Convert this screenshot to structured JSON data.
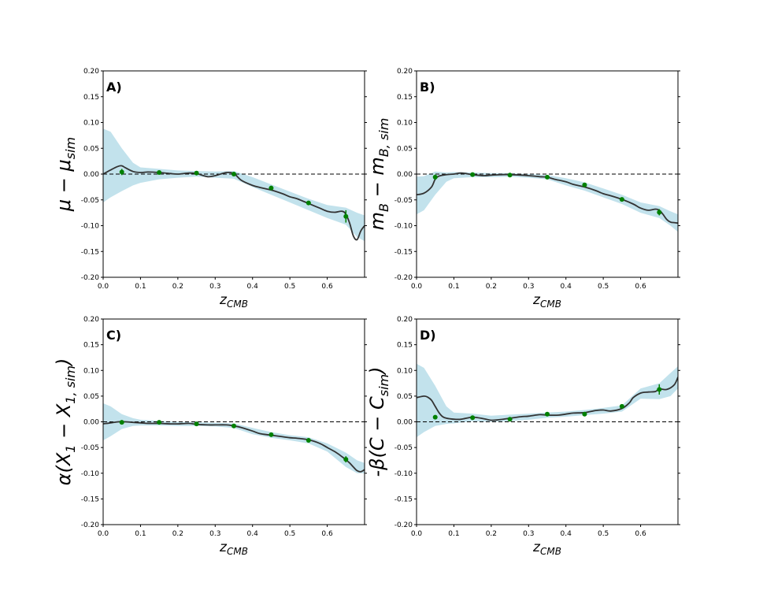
{
  "colors": {
    "band": "#add8e6",
    "curve": "#333333",
    "points": "#008000",
    "zero_line": "#000000"
  },
  "chart_data": [
    {
      "type": "line",
      "panel_label": "A)",
      "ylabel_text": "μ − μ",
      "ylabel_sub": "sim",
      "xlabel_text": "z",
      "xlabel_sub": "CMB",
      "xlim": [
        0.0,
        0.7
      ],
      "ylim": [
        -0.2,
        0.2
      ],
      "xticks": [
        "0.0",
        "0.1",
        "0.2",
        "0.3",
        "0.4",
        "0.5",
        "0.6"
      ],
      "yticks": [
        "0.20",
        "0.15",
        "0.10",
        "0.05",
        "0.00",
        "-0.05",
        "-0.10",
        "-0.15",
        "-0.20"
      ],
      "reference_line_y": 0.0,
      "curve": {
        "x": [
          0.0,
          0.02,
          0.04,
          0.05,
          0.06,
          0.08,
          0.1,
          0.12,
          0.15,
          0.18,
          0.2,
          0.23,
          0.25,
          0.28,
          0.3,
          0.33,
          0.35,
          0.37,
          0.4,
          0.42,
          0.45,
          0.48,
          0.5,
          0.52,
          0.55,
          0.58,
          0.6,
          0.62,
          0.64,
          0.65,
          0.66,
          0.67,
          0.68,
          0.69,
          0.7
        ],
        "y": [
          0.0,
          0.008,
          0.015,
          0.016,
          0.012,
          0.005,
          0.003,
          0.004,
          0.003,
          0.001,
          0.0,
          0.002,
          0.001,
          -0.005,
          -0.003,
          0.003,
          0.001,
          -0.012,
          -0.022,
          -0.026,
          -0.031,
          -0.038,
          -0.044,
          -0.048,
          -0.057,
          -0.066,
          -0.072,
          -0.074,
          -0.072,
          -0.078,
          -0.095,
          -0.12,
          -0.127,
          -0.11,
          -0.1
        ]
      },
      "band": {
        "x": [
          0.0,
          0.02,
          0.05,
          0.08,
          0.1,
          0.15,
          0.2,
          0.25,
          0.3,
          0.35,
          0.4,
          0.45,
          0.5,
          0.55,
          0.6,
          0.65,
          0.68,
          0.7
        ],
        "upper": [
          0.088,
          0.082,
          0.05,
          0.022,
          0.013,
          0.01,
          0.007,
          0.006,
          0.005,
          0.006,
          -0.006,
          -0.02,
          -0.034,
          -0.048,
          -0.06,
          -0.065,
          -0.075,
          -0.08
        ],
        "lower": [
          -0.055,
          -0.045,
          -0.033,
          -0.022,
          -0.017,
          -0.01,
          -0.007,
          -0.005,
          -0.007,
          -0.009,
          -0.025,
          -0.04,
          -0.055,
          -0.07,
          -0.085,
          -0.098,
          -0.122,
          -0.13
        ]
      },
      "points": {
        "x": [
          0.05,
          0.15,
          0.25,
          0.35,
          0.45,
          0.55,
          0.65
        ],
        "y": [
          0.004,
          0.003,
          0.002,
          0.0,
          -0.027,
          -0.056,
          -0.082
        ],
        "yerr": [
          0.006,
          0.002,
          0.002,
          0.002,
          0.002,
          0.004,
          0.012
        ]
      }
    },
    {
      "type": "line",
      "panel_label": "B)",
      "ylabel_text": "m",
      "ylabel_sub": "B",
      "ylabel_text2": " − m",
      "ylabel_sub2": "B, sim",
      "xlabel_text": "z",
      "xlabel_sub": "CMB",
      "xlim": [
        0.0,
        0.7
      ],
      "ylim": [
        -0.2,
        0.2
      ],
      "xticks": [
        "0.0",
        "0.1",
        "0.2",
        "0.3",
        "0.4",
        "0.5",
        "0.6"
      ],
      "yticks": [
        "0.20",
        "0.15",
        "0.10",
        "0.05",
        "0.00",
        "-0.05",
        "-0.10",
        "-0.15",
        "-0.20"
      ],
      "reference_line_y": 0.0,
      "curve": {
        "x": [
          0.0,
          0.02,
          0.04,
          0.05,
          0.06,
          0.08,
          0.1,
          0.12,
          0.15,
          0.18,
          0.2,
          0.23,
          0.25,
          0.28,
          0.3,
          0.33,
          0.35,
          0.37,
          0.4,
          0.42,
          0.45,
          0.48,
          0.5,
          0.52,
          0.55,
          0.58,
          0.6,
          0.62,
          0.64,
          0.65,
          0.66,
          0.67,
          0.68,
          0.69,
          0.7
        ],
        "y": [
          -0.04,
          -0.037,
          -0.025,
          -0.01,
          -0.004,
          -0.001,
          0.0,
          0.002,
          -0.001,
          -0.003,
          -0.002,
          -0.001,
          -0.001,
          -0.002,
          -0.003,
          -0.005,
          -0.006,
          -0.01,
          -0.015,
          -0.02,
          -0.025,
          -0.032,
          -0.038,
          -0.042,
          -0.049,
          -0.058,
          -0.066,
          -0.07,
          -0.068,
          -0.07,
          -0.078,
          -0.088,
          -0.093,
          -0.094,
          -0.095
        ]
      },
      "band": {
        "x": [
          0.0,
          0.02,
          0.05,
          0.08,
          0.1,
          0.15,
          0.2,
          0.25,
          0.3,
          0.35,
          0.4,
          0.45,
          0.5,
          0.55,
          0.6,
          0.65,
          0.68,
          0.7
        ],
        "upper": [
          -0.005,
          -0.004,
          0.005,
          0.003,
          0.004,
          0.003,
          0.002,
          0.002,
          0.0,
          -0.002,
          -0.008,
          -0.016,
          -0.028,
          -0.04,
          -0.055,
          -0.062,
          -0.072,
          -0.078
        ],
        "lower": [
          -0.078,
          -0.07,
          -0.04,
          -0.015,
          -0.008,
          -0.006,
          -0.006,
          -0.005,
          -0.007,
          -0.01,
          -0.022,
          -0.032,
          -0.045,
          -0.058,
          -0.075,
          -0.085,
          -0.1,
          -0.112
        ]
      },
      "points": {
        "x": [
          0.05,
          0.15,
          0.25,
          0.35,
          0.45,
          0.55,
          0.65
        ],
        "y": [
          -0.006,
          -0.001,
          -0.002,
          -0.006,
          -0.021,
          -0.049,
          -0.074
        ],
        "yerr": [
          0.005,
          0.002,
          0.002,
          0.002,
          0.002,
          0.003,
          0.006
        ]
      }
    },
    {
      "type": "line",
      "panel_label": "C)",
      "ylabel_text": "α(X",
      "ylabel_sub": "1",
      "ylabel_text2": " − X",
      "ylabel_sub2": "1, sim",
      "ylabel_text3": ")",
      "xlabel_text": "z",
      "xlabel_sub": "CMB",
      "xlim": [
        0.0,
        0.7
      ],
      "ylim": [
        -0.2,
        0.2
      ],
      "xticks": [
        "0.0",
        "0.1",
        "0.2",
        "0.3",
        "0.4",
        "0.5",
        "0.6"
      ],
      "yticks": [
        "0.20",
        "0.15",
        "0.10",
        "0.05",
        "0.00",
        "-0.05",
        "-0.10",
        "-0.15",
        "-0.20"
      ],
      "reference_line_y": 0.0,
      "curve": {
        "x": [
          0.0,
          0.02,
          0.04,
          0.05,
          0.06,
          0.08,
          0.1,
          0.12,
          0.15,
          0.18,
          0.2,
          0.23,
          0.25,
          0.28,
          0.3,
          0.33,
          0.35,
          0.37,
          0.4,
          0.42,
          0.45,
          0.48,
          0.5,
          0.52,
          0.55,
          0.58,
          0.6,
          0.62,
          0.64,
          0.65,
          0.66,
          0.67,
          0.68,
          0.69,
          0.7
        ],
        "y": [
          -0.004,
          -0.002,
          0.0,
          0.0,
          0.0,
          -0.001,
          -0.002,
          -0.003,
          -0.003,
          -0.004,
          -0.004,
          -0.003,
          -0.005,
          -0.006,
          -0.006,
          -0.006,
          -0.008,
          -0.011,
          -0.018,
          -0.023,
          -0.026,
          -0.029,
          -0.031,
          -0.032,
          -0.035,
          -0.042,
          -0.05,
          -0.058,
          -0.068,
          -0.074,
          -0.08,
          -0.088,
          -0.095,
          -0.097,
          -0.093
        ]
      },
      "band": {
        "x": [
          0.0,
          0.02,
          0.05,
          0.08,
          0.1,
          0.15,
          0.2,
          0.25,
          0.3,
          0.35,
          0.4,
          0.45,
          0.5,
          0.55,
          0.6,
          0.65,
          0.68,
          0.7
        ],
        "upper": [
          0.036,
          0.03,
          0.015,
          0.007,
          0.004,
          0.002,
          0.0,
          -0.001,
          -0.002,
          -0.003,
          -0.012,
          -0.02,
          -0.026,
          -0.03,
          -0.042,
          -0.06,
          -0.075,
          -0.08
        ],
        "lower": [
          -0.036,
          -0.028,
          -0.014,
          -0.008,
          -0.007,
          -0.007,
          -0.008,
          -0.008,
          -0.009,
          -0.012,
          -0.024,
          -0.031,
          -0.036,
          -0.042,
          -0.058,
          -0.088,
          -0.1,
          -0.1
        ]
      },
      "points": {
        "x": [
          0.05,
          0.15,
          0.25,
          0.35,
          0.45,
          0.55,
          0.65
        ],
        "y": [
          -0.001,
          -0.001,
          -0.004,
          -0.008,
          -0.025,
          -0.036,
          -0.073
        ],
        "yerr": [
          0.002,
          0.002,
          0.002,
          0.002,
          0.002,
          0.002,
          0.006
        ]
      }
    },
    {
      "type": "line",
      "panel_label": "D)",
      "ylabel_text": "-β(C − C",
      "ylabel_sub": "sim",
      "ylabel_text2": ")",
      "xlabel_text": "z",
      "xlabel_sub": "CMB",
      "xlim": [
        0.0,
        0.7
      ],
      "ylim": [
        -0.2,
        0.2
      ],
      "xticks": [
        "0.0",
        "0.1",
        "0.2",
        "0.3",
        "0.4",
        "0.5",
        "0.6"
      ],
      "yticks": [
        "0.20",
        "0.15",
        "0.10",
        "0.05",
        "0.00",
        "-0.05",
        "-0.10",
        "-0.15",
        "-0.20"
      ],
      "reference_line_y": 0.0,
      "curve": {
        "x": [
          0.0,
          0.02,
          0.03,
          0.04,
          0.05,
          0.06,
          0.07,
          0.08,
          0.1,
          0.12,
          0.15,
          0.18,
          0.2,
          0.22,
          0.25,
          0.28,
          0.3,
          0.33,
          0.35,
          0.38,
          0.4,
          0.42,
          0.45,
          0.48,
          0.5,
          0.52,
          0.55,
          0.57,
          0.58,
          0.6,
          0.62,
          0.64,
          0.65,
          0.67,
          0.69,
          0.7
        ],
        "y": [
          0.047,
          0.05,
          0.048,
          0.042,
          0.03,
          0.018,
          0.01,
          0.007,
          0.005,
          0.005,
          0.009,
          0.006,
          0.003,
          0.004,
          0.007,
          0.01,
          0.011,
          0.014,
          0.013,
          0.013,
          0.015,
          0.017,
          0.018,
          0.022,
          0.023,
          0.021,
          0.026,
          0.037,
          0.047,
          0.056,
          0.058,
          0.059,
          0.064,
          0.063,
          0.072,
          0.087
        ]
      },
      "band": {
        "x": [
          0.0,
          0.02,
          0.05,
          0.08,
          0.1,
          0.15,
          0.2,
          0.25,
          0.3,
          0.35,
          0.4,
          0.45,
          0.5,
          0.55,
          0.6,
          0.65,
          0.68,
          0.7
        ],
        "upper": [
          0.113,
          0.105,
          0.07,
          0.03,
          0.018,
          0.016,
          0.012,
          0.014,
          0.016,
          0.018,
          0.02,
          0.023,
          0.027,
          0.032,
          0.065,
          0.075,
          0.095,
          0.108
        ],
        "lower": [
          -0.03,
          -0.02,
          -0.008,
          -0.004,
          -0.003,
          0.001,
          0.0,
          0.001,
          0.004,
          0.008,
          0.01,
          0.013,
          0.016,
          0.02,
          0.045,
          0.044,
          0.05,
          0.065
        ]
      },
      "points": {
        "x": [
          0.05,
          0.15,
          0.25,
          0.35,
          0.45,
          0.55,
          0.65
        ],
        "y": [
          0.009,
          0.008,
          0.005,
          0.015,
          0.015,
          0.03,
          0.063
        ],
        "yerr": [
          0.004,
          0.003,
          0.002,
          0.002,
          0.002,
          0.003,
          0.01
        ]
      }
    }
  ]
}
